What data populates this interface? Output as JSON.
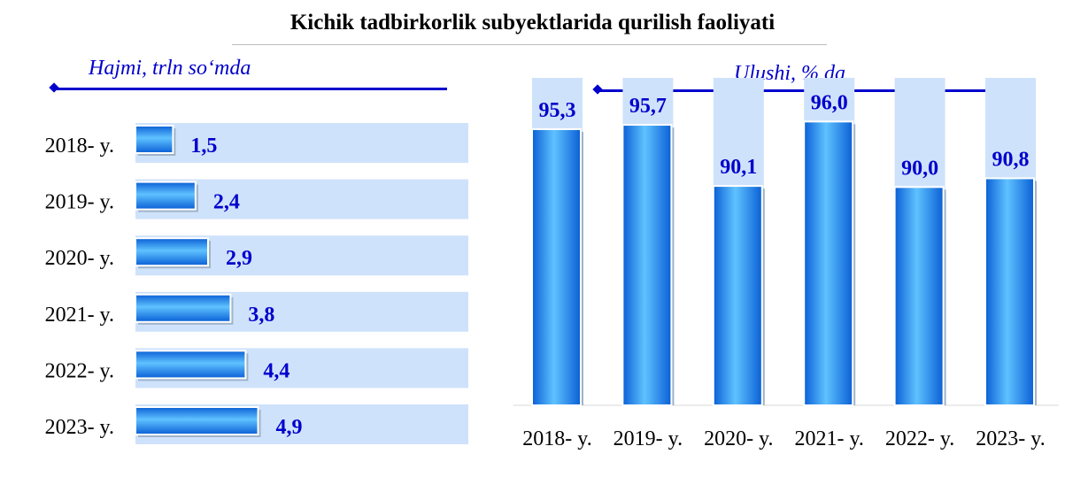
{
  "title": "Kichik tadbirkorlik subyektlarida qurilish faoliyati",
  "chart_data": [
    {
      "type": "bar",
      "orientation": "horizontal",
      "unit_label": "Hajmi, trln so‘mda",
      "categories": [
        "2018- y.",
        "2019- y.",
        "2020- y.",
        "2021- y.",
        "2022- y.",
        "2023- y."
      ],
      "values": [
        1.5,
        2.4,
        2.9,
        3.8,
        4.4,
        4.9
      ],
      "value_labels": [
        "1,5",
        "2,4",
        "2,9",
        "3,8",
        "4,4",
        "4,9"
      ],
      "xlim": [
        0,
        13.3
      ],
      "colors": {
        "bar": "#1a86f0",
        "background": "#cfe2fb",
        "label": "#0000cc"
      }
    },
    {
      "type": "bar",
      "orientation": "vertical",
      "unit_label": "Ulushi, % da",
      "categories": [
        "2018- y.",
        "2019- y.",
        "2020- y.",
        "2021- y.",
        "2022- y.",
        "2023- y."
      ],
      "values": [
        95.3,
        95.7,
        90.1,
        96.0,
        90.0,
        90.8
      ],
      "value_labels": [
        "95,3",
        "95,7",
        "90,1",
        "96,0",
        "90,0",
        "90,8"
      ],
      "ylim": [
        70,
        100
      ],
      "colors": {
        "bar": "#1a86f0",
        "background": "#cfe2fb",
        "label": "#0000cc"
      }
    }
  ]
}
